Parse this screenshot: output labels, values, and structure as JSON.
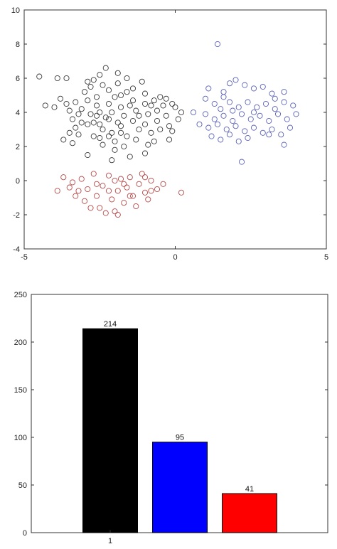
{
  "chart_data": [
    {
      "type": "scatter",
      "xlim": [
        -5,
        5
      ],
      "ylim": [
        -4,
        10
      ],
      "xticks": [
        "-5",
        "0",
        "5"
      ],
      "yticks": [
        "-4",
        "-2",
        "0",
        "2",
        "4",
        "6",
        "8",
        "10"
      ],
      "grid": false,
      "marker": "open-circle",
      "series": [
        {
          "color": "#3a3a3a",
          "points": [
            [
              -4.5,
              6.1
            ],
            [
              -4.3,
              4.4
            ],
            [
              -4.0,
              4.3
            ],
            [
              -3.9,
              6.0
            ],
            [
              -3.6,
              6.0
            ],
            [
              -3.8,
              4.8
            ],
            [
              -3.6,
              4.5
            ],
            [
              -3.5,
              4.1
            ],
            [
              -3.4,
              3.6
            ],
            [
              -3.3,
              3.1
            ],
            [
              -3.5,
              2.8
            ],
            [
              -3.7,
              2.4
            ],
            [
              -3.4,
              2.2
            ],
            [
              -3.1,
              4.2
            ],
            [
              -3.0,
              5.2
            ],
            [
              -2.8,
              5.5
            ],
            [
              -2.9,
              4.7
            ],
            [
              -2.8,
              3.9
            ],
            [
              -2.9,
              3.3
            ],
            [
              -2.7,
              2.6
            ],
            [
              -2.9,
              1.5
            ],
            [
              -2.7,
              5.9
            ],
            [
              -2.5,
              6.2
            ],
            [
              -2.6,
              4.9
            ],
            [
              -2.6,
              4.4
            ],
            [
              -2.5,
              4.0
            ],
            [
              -2.5,
              3.3
            ],
            [
              -2.4,
              3.0
            ],
            [
              -2.5,
              2.5
            ],
            [
              -2.4,
              2.1
            ],
            [
              -2.3,
              6.6
            ],
            [
              -2.2,
              5.3
            ],
            [
              -2.2,
              4.5
            ],
            [
              -2.1,
              4.0
            ],
            [
              -2.2,
              3.6
            ],
            [
              -2.1,
              2.8
            ],
            [
              -2.0,
              2.3
            ],
            [
              -2.0,
              1.8
            ],
            [
              -1.9,
              6.3
            ],
            [
              -1.9,
              5.7
            ],
            [
              -1.8,
              5.0
            ],
            [
              -1.8,
              4.3
            ],
            [
              -1.7,
              3.8
            ],
            [
              -1.8,
              3.2
            ],
            [
              -1.6,
              2.6
            ],
            [
              -1.7,
              2.0
            ],
            [
              -1.5,
              1.4
            ],
            [
              -1.6,
              6.0
            ],
            [
              -1.4,
              5.4
            ],
            [
              -1.4,
              4.7
            ],
            [
              -1.3,
              4.1
            ],
            [
              -1.4,
              3.5
            ],
            [
              -1.2,
              3.0
            ],
            [
              -1.3,
              2.4
            ],
            [
              -1.1,
              5.8
            ],
            [
              -1.0,
              5.1
            ],
            [
              -1.0,
              4.5
            ],
            [
              -0.9,
              3.9
            ],
            [
              -1.0,
              3.3
            ],
            [
              -0.8,
              2.8
            ],
            [
              -0.9,
              2.1
            ],
            [
              -0.7,
              4.7
            ],
            [
              -0.6,
              4.1
            ],
            [
              -0.6,
              3.5
            ],
            [
              -0.5,
              3.0
            ],
            [
              -0.4,
              4.4
            ],
            [
              -0.3,
              3.8
            ],
            [
              -0.2,
              3.2
            ],
            [
              -0.1,
              2.9
            ],
            [
              0.0,
              4.3
            ],
            [
              0.1,
              3.6
            ],
            [
              0.2,
              4.0
            ],
            [
              -0.3,
              4.8
            ],
            [
              -0.2,
              2.4
            ],
            [
              -2.0,
              4.9
            ],
            [
              -2.3,
              3.7
            ],
            [
              -2.6,
              3.8
            ],
            [
              -1.5,
              4.4
            ],
            [
              -1.2,
              3.8
            ],
            [
              -0.8,
              4.4
            ],
            [
              -3.2,
              3.9
            ],
            [
              -3.1,
              3.4
            ],
            [
              -3.2,
              2.7
            ],
            [
              -2.1,
              1.2
            ],
            [
              -1.0,
              1.6
            ],
            [
              -0.7,
              2.3
            ],
            [
              -1.6,
              5.2
            ],
            [
              -2.4,
              5.6
            ],
            [
              -2.9,
              5.8
            ],
            [
              -3.3,
              4.6
            ],
            [
              -1.9,
              3.4
            ],
            [
              -0.5,
              4.9
            ],
            [
              -0.1,
              4.5
            ],
            [
              -1.8,
              2.8
            ],
            [
              -2.2,
              2.6
            ],
            [
              -2.7,
              3.4
            ]
          ]
        },
        {
          "color": "#5b62b8",
          "points": [
            [
              1.4,
              8.0
            ],
            [
              1.1,
              5.4
            ],
            [
              1.6,
              5.2
            ],
            [
              1.8,
              5.7
            ],
            [
              2.0,
              5.9
            ],
            [
              2.3,
              5.6
            ],
            [
              2.6,
              5.4
            ],
            [
              2.9,
              5.5
            ],
            [
              3.2,
              5.1
            ],
            [
              3.6,
              5.2
            ],
            [
              1.0,
              4.8
            ],
            [
              1.3,
              4.5
            ],
            [
              1.5,
              4.2
            ],
            [
              1.8,
              4.6
            ],
            [
              2.1,
              4.3
            ],
            [
              2.4,
              4.6
            ],
            [
              2.7,
              4.3
            ],
            [
              3.0,
              4.5
            ],
            [
              3.3,
              4.2
            ],
            [
              3.6,
              4.6
            ],
            [
              3.9,
              4.4
            ],
            [
              1.0,
              3.9
            ],
            [
              1.3,
              3.6
            ],
            [
              1.6,
              3.8
            ],
            [
              1.9,
              3.5
            ],
            [
              2.2,
              3.9
            ],
            [
              2.5,
              3.6
            ],
            [
              2.8,
              3.8
            ],
            [
              3.1,
              3.5
            ],
            [
              3.4,
              3.9
            ],
            [
              3.7,
              3.6
            ],
            [
              4.0,
              3.9
            ],
            [
              1.1,
              3.1
            ],
            [
              1.4,
              3.3
            ],
            [
              1.7,
              3.0
            ],
            [
              2.0,
              3.2
            ],
            [
              2.3,
              2.9
            ],
            [
              2.6,
              3.1
            ],
            [
              2.9,
              2.8
            ],
            [
              3.2,
              3.0
            ],
            [
              3.5,
              2.7
            ],
            [
              3.8,
              3.1
            ],
            [
              1.2,
              2.6
            ],
            [
              1.5,
              2.4
            ],
            [
              1.8,
              2.7
            ],
            [
              2.1,
              2.3
            ],
            [
              2.4,
              2.5
            ],
            [
              3.1,
              2.7
            ],
            [
              3.6,
              2.1
            ],
            [
              2.2,
              1.1
            ],
            [
              0.6,
              4.0
            ],
            [
              0.8,
              3.3
            ],
            [
              1.9,
              4.1
            ],
            [
              2.6,
              4.0
            ],
            [
              3.3,
              4.8
            ],
            [
              1.6,
              4.9
            ]
          ]
        },
        {
          "color": "#b84a4a",
          "points": [
            [
              -3.9,
              -0.6
            ],
            [
              -3.7,
              0.2
            ],
            [
              -3.5,
              -0.4
            ],
            [
              -3.3,
              -0.9
            ],
            [
              -3.1,
              0.1
            ],
            [
              -3.0,
              -1.2
            ],
            [
              -2.9,
              -0.5
            ],
            [
              -2.7,
              0.4
            ],
            [
              -2.6,
              -0.9
            ],
            [
              -2.5,
              -1.6
            ],
            [
              -2.4,
              -0.3
            ],
            [
              -2.2,
              0.3
            ],
            [
              -2.1,
              -1.1
            ],
            [
              -2.0,
              -1.8
            ],
            [
              -1.9,
              -0.6
            ],
            [
              -1.8,
              0.1
            ],
            [
              -1.7,
              -1.3
            ],
            [
              -1.6,
              -0.4
            ],
            [
              -1.5,
              0.2
            ],
            [
              -1.4,
              -0.9
            ],
            [
              -1.3,
              -1.5
            ],
            [
              -1.2,
              -0.2
            ],
            [
              -1.1,
              0.4
            ],
            [
              -1.0,
              -0.7
            ],
            [
              -0.9,
              -1.1
            ],
            [
              -0.8,
              0.0
            ],
            [
              -0.6,
              -0.5
            ],
            [
              -0.4,
              -0.2
            ],
            [
              0.2,
              -0.7
            ],
            [
              -2.8,
              -1.6
            ],
            [
              -2.3,
              -1.9
            ],
            [
              -3.4,
              -0.1
            ],
            [
              -1.9,
              -2.0
            ],
            [
              -2.6,
              -0.2
            ],
            [
              -1.5,
              -0.9
            ],
            [
              -1.0,
              0.2
            ],
            [
              -0.8,
              -0.6
            ],
            [
              -2.2,
              -0.6
            ],
            [
              -3.2,
              -0.6
            ],
            [
              -1.7,
              -0.2
            ],
            [
              -2.0,
              0.0
            ]
          ]
        }
      ]
    },
    {
      "type": "bar",
      "categories": [
        "1"
      ],
      "ylim": [
        0,
        250
      ],
      "yticks": [
        "0",
        "50",
        "100",
        "150",
        "200",
        "250"
      ],
      "grid": false,
      "bars": [
        {
          "value": 214,
          "label": "214",
          "color": "#000000"
        },
        {
          "value": 95,
          "label": "95",
          "color": "#0000ff"
        },
        {
          "value": 41,
          "label": "41",
          "color": "#ff0000"
        }
      ]
    }
  ]
}
